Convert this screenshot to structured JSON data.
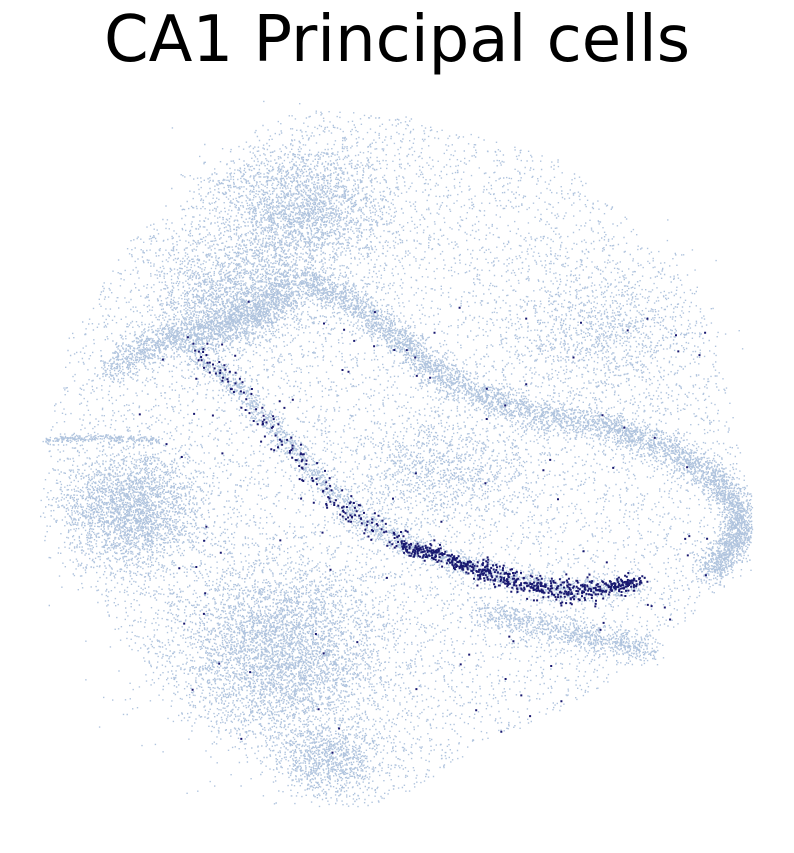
{
  "chart_data": {
    "type": "scatter",
    "title": "CA1 Principal cells",
    "xlabel": "",
    "ylabel": "",
    "axes_visible": false,
    "grid": false,
    "legend": "none",
    "series": [
      {
        "role": "background",
        "color": "#b0c4de",
        "point_count_estimate": 40000
      },
      {
        "role": "highlight",
        "color": "#191970",
        "point_count_estimate": 900
      }
    ]
  }
}
